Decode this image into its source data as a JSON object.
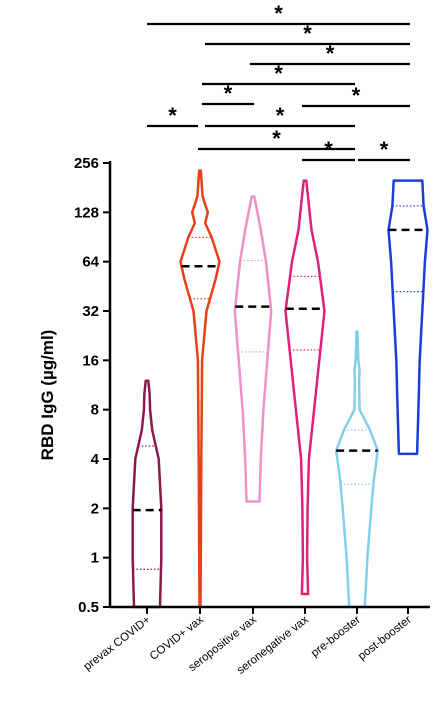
{
  "chart_data": {
    "type": "violin",
    "ylabel": "RBD IgG (µg/ml)",
    "y_scale": "log2",
    "ylim": [
      0.5,
      256
    ],
    "yticks": [
      0.5,
      1,
      2,
      4,
      8,
      16,
      32,
      64,
      128,
      256
    ],
    "ytick_labels": [
      "0.5",
      "1",
      "2",
      "4",
      "8",
      "16",
      "32",
      "64",
      "128",
      "256"
    ],
    "categories": [
      "prevax COVID+",
      "COVID+ vax",
      "seropositive vax",
      "seronegative vax",
      "pre-booster",
      "post-booster"
    ],
    "colors": [
      "#8b1a4a",
      "#e8401a",
      "#f08fc8",
      "#e0207a",
      "#7fd0e8",
      "#1a3ed8"
    ],
    "series": [
      {
        "min": 0.5,
        "max": 12,
        "q1": 0.85,
        "median": 1.95,
        "q3": 4.8,
        "widths": [
          [
            0.5,
            0.5
          ],
          [
            1,
            0.55
          ],
          [
            2,
            0.55
          ],
          [
            4,
            0.45
          ],
          [
            6,
            0.2
          ],
          [
            8,
            0.12
          ],
          [
            10,
            0.1
          ],
          [
            12,
            0.05
          ]
        ]
      },
      {
        "min": 0.5,
        "max": 230,
        "q1": 38,
        "median": 60,
        "q3": 90,
        "widths": [
          [
            0.5,
            0.02
          ],
          [
            4,
            0.05
          ],
          [
            16,
            0.08
          ],
          [
            32,
            0.25
          ],
          [
            50,
            0.6
          ],
          [
            64,
            0.75
          ],
          [
            90,
            0.45
          ],
          [
            110,
            0.2
          ],
          [
            128,
            0.3
          ],
          [
            160,
            0.1
          ],
          [
            230,
            0.03
          ]
        ]
      },
      {
        "min": 2.2,
        "max": 160,
        "q1": 18,
        "median": 34,
        "q3": 65,
        "widths": [
          [
            2.2,
            0.25
          ],
          [
            4,
            0.3
          ],
          [
            8,
            0.4
          ],
          [
            16,
            0.55
          ],
          [
            32,
            0.7
          ],
          [
            64,
            0.5
          ],
          [
            100,
            0.3
          ],
          [
            160,
            0.05
          ]
        ]
      },
      {
        "min": 0.6,
        "max": 200,
        "q1": 18.5,
        "median": 33,
        "q3": 52,
        "widths": [
          [
            0.6,
            0.12
          ],
          [
            1,
            0.08
          ],
          [
            2,
            0.1
          ],
          [
            4,
            0.15
          ],
          [
            8,
            0.35
          ],
          [
            16,
            0.55
          ],
          [
            32,
            0.75
          ],
          [
            64,
            0.5
          ],
          [
            100,
            0.25
          ],
          [
            200,
            0.05
          ]
        ]
      },
      {
        "min": 0.5,
        "max": 24,
        "q1": 2.8,
        "median": 4.5,
        "q3": 6,
        "widths": [
          [
            0.5,
            0.3
          ],
          [
            1,
            0.4
          ],
          [
            2,
            0.55
          ],
          [
            3,
            0.65
          ],
          [
            4.5,
            0.8
          ],
          [
            6,
            0.5
          ],
          [
            8,
            0.1
          ],
          [
            12,
            0.08
          ],
          [
            14,
            0.1
          ],
          [
            16,
            0.05
          ],
          [
            24,
            0.02
          ]
        ]
      },
      {
        "min": 4.3,
        "max": 200,
        "q1": 42,
        "median": 100,
        "q3": 140,
        "widths": [
          [
            4.3,
            0.35
          ],
          [
            8,
            0.4
          ],
          [
            16,
            0.45
          ],
          [
            32,
            0.55
          ],
          [
            64,
            0.65
          ],
          [
            100,
            0.75
          ],
          [
            140,
            0.6
          ],
          [
            200,
            0.55
          ]
        ]
      }
    ],
    "significance_brackets": [
      {
        "from": 0,
        "to": 5,
        "label": "*"
      },
      {
        "from": 1,
        "to": 5,
        "label": "*"
      },
      {
        "from": 2,
        "to": 5,
        "label": "*"
      },
      {
        "from": 2,
        "to": 4,
        "label": "*"
      },
      {
        "from": 3,
        "to": 5,
        "label": "*"
      },
      {
        "from": 1,
        "to": 4,
        "label": "*"
      },
      {
        "from": 0,
        "to": 1,
        "label": "*"
      },
      {
        "from": 1,
        "to": 2,
        "label": "*"
      },
      {
        "from": 1,
        "to": 4,
        "label": "*"
      },
      {
        "from": 3,
        "to": 4,
        "label": "*"
      },
      {
        "from": 4,
        "to": 5,
        "label": "*"
      }
    ]
  }
}
